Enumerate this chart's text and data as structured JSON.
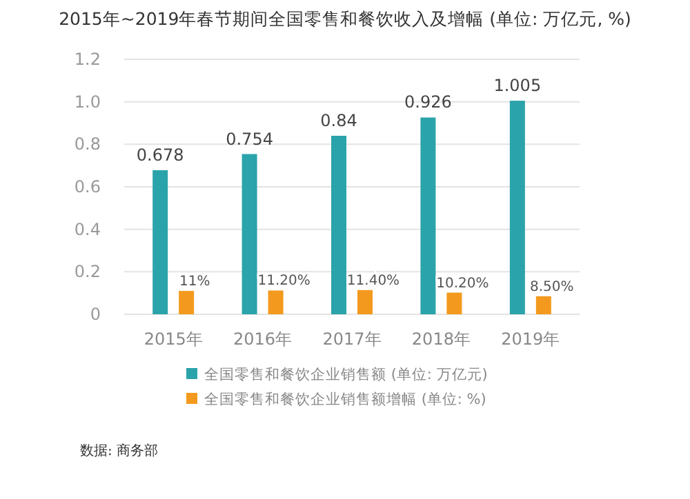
{
  "chart_data": {
    "type": "bar",
    "title": "2015年~2019年春节期间全国零售和餐饮收入及增幅 (单位: 万亿元, %)",
    "categories": [
      "2015年",
      "2016年",
      "2017年",
      "2018年",
      "2019年"
    ],
    "series": [
      {
        "name": "全国零售和餐饮企业销售额 (单位: 万亿元)",
        "color": "#2ba3aa",
        "values": [
          0.678,
          0.754,
          0.84,
          0.926,
          1.005
        ],
        "value_labels": [
          "0.678",
          "0.754",
          "0.84",
          "0.926",
          "1.005"
        ]
      },
      {
        "name": "全国零售和餐饮企业销售额增幅 (单位: %)",
        "color": "#f39a1e",
        "axis": "y2",
        "values": [
          11,
          11.2,
          11.4,
          10.2,
          8.5
        ],
        "value_labels": [
          "11%",
          "11.20%",
          "11.40%",
          "10.20%",
          "8.50%"
        ]
      }
    ],
    "ylim": [
      0,
      1.2
    ],
    "yticks": [
      {
        "value": 0,
        "label": "0"
      },
      {
        "value": 0.2,
        "label": "0.2"
      },
      {
        "value": 0.4,
        "label": "0.4"
      },
      {
        "value": 0.6,
        "label": "0.6"
      },
      {
        "value": 0.8,
        "label": "0.8"
      },
      {
        "value": 1,
        "label": "1.0"
      },
      {
        "value": 1.2,
        "label": "1.2"
      }
    ],
    "y2lim": [
      0,
      120
    ],
    "grid": "y",
    "legend": "bottom",
    "annotations": [
      "数据: 商务部"
    ]
  }
}
